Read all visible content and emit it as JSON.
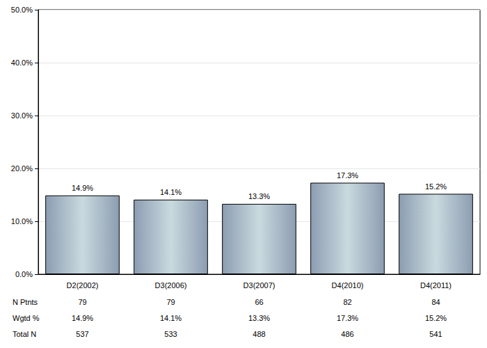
{
  "chart_data": {
    "type": "bar",
    "categories": [
      "D2(2002)",
      "D3(2006)",
      "D3(2007)",
      "D4(2010)",
      "D4(2011)"
    ],
    "values": [
      14.9,
      14.1,
      13.3,
      17.3,
      15.2
    ],
    "value_labels": [
      "14.9%",
      "14.1%",
      "13.3%",
      "17.3%",
      "15.2%"
    ],
    "data_labels": true,
    "color": "#8d9db2",
    "ylim": [
      0,
      50
    ],
    "yticks": [
      {
        "value": 0,
        "label": "0.0%"
      },
      {
        "value": 10,
        "label": "10.0%"
      },
      {
        "value": 20,
        "label": "20.0%"
      },
      {
        "value": 30,
        "label": "30.0%"
      },
      {
        "value": 40,
        "label": "40.0%"
      },
      {
        "value": 50,
        "label": "50.0%"
      }
    ],
    "grid": true,
    "table": {
      "rows": [
        {
          "label": "N Ptnts",
          "values": [
            79,
            79,
            66,
            82,
            84
          ]
        },
        {
          "label": "Wgtd %",
          "values": [
            14.9,
            14.1,
            13.3,
            17.3,
            15.2
          ],
          "value_labels": [
            "14.9%",
            "14.1%",
            "13.3%",
            "17.3%",
            "15.2%"
          ]
        },
        {
          "label": "Total N",
          "values": [
            537,
            533,
            488,
            486,
            541
          ]
        }
      ]
    }
  }
}
